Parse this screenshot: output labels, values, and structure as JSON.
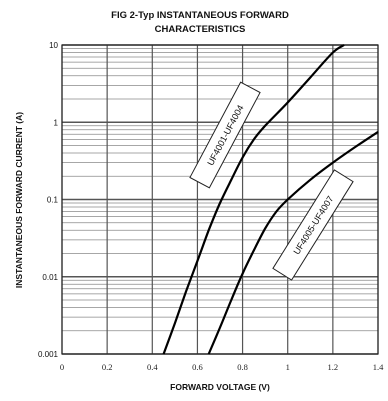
{
  "chart_data": {
    "type": "line",
    "title_line1": "FIG 2-Typ INSTANTANEOUS FORWARD",
    "title_line2": "CHARACTERISTICS",
    "xlabel": "FORWARD VOLTAGE (V)",
    "ylabel": "INSTANTANEOUS FORWARD CURRENT (A)",
    "xlim": [
      0,
      1.4
    ],
    "ylim": [
      0.001,
      10
    ],
    "yscale": "log",
    "grid": true,
    "x_ticks": [
      0,
      0.2,
      0.4,
      0.6,
      0.8,
      1,
      1.2,
      1.4
    ],
    "x_tick_labels": [
      "0",
      "0.2",
      "0.4",
      "0.6",
      "0.8",
      "1",
      "1.2",
      "1.4"
    ],
    "y_ticks": [
      0.001,
      0.01,
      0.1,
      1,
      10
    ],
    "y_tick_labels": [
      "0.001",
      "0.01",
      "0.1",
      "1",
      "10"
    ],
    "series": [
      {
        "name": "UF4001-UF4004",
        "x": [
          0.45,
          0.5,
          0.55,
          0.6,
          0.65,
          0.7,
          0.75,
          0.8,
          0.85,
          0.9,
          1.0,
          1.1,
          1.2,
          1.25
        ],
        "y": [
          0.001,
          0.0025,
          0.0065,
          0.016,
          0.04,
          0.09,
          0.18,
          0.35,
          0.6,
          0.9,
          1.8,
          3.8,
          8.0,
          10
        ]
      },
      {
        "name": "UF4005-UF4007",
        "x": [
          0.65,
          0.7,
          0.75,
          0.8,
          0.85,
          0.9,
          0.95,
          1.0,
          1.1,
          1.2,
          1.3,
          1.4
        ],
        "y": [
          0.001,
          0.0022,
          0.005,
          0.011,
          0.022,
          0.042,
          0.07,
          0.1,
          0.18,
          0.3,
          0.48,
          0.75
        ]
      }
    ]
  }
}
